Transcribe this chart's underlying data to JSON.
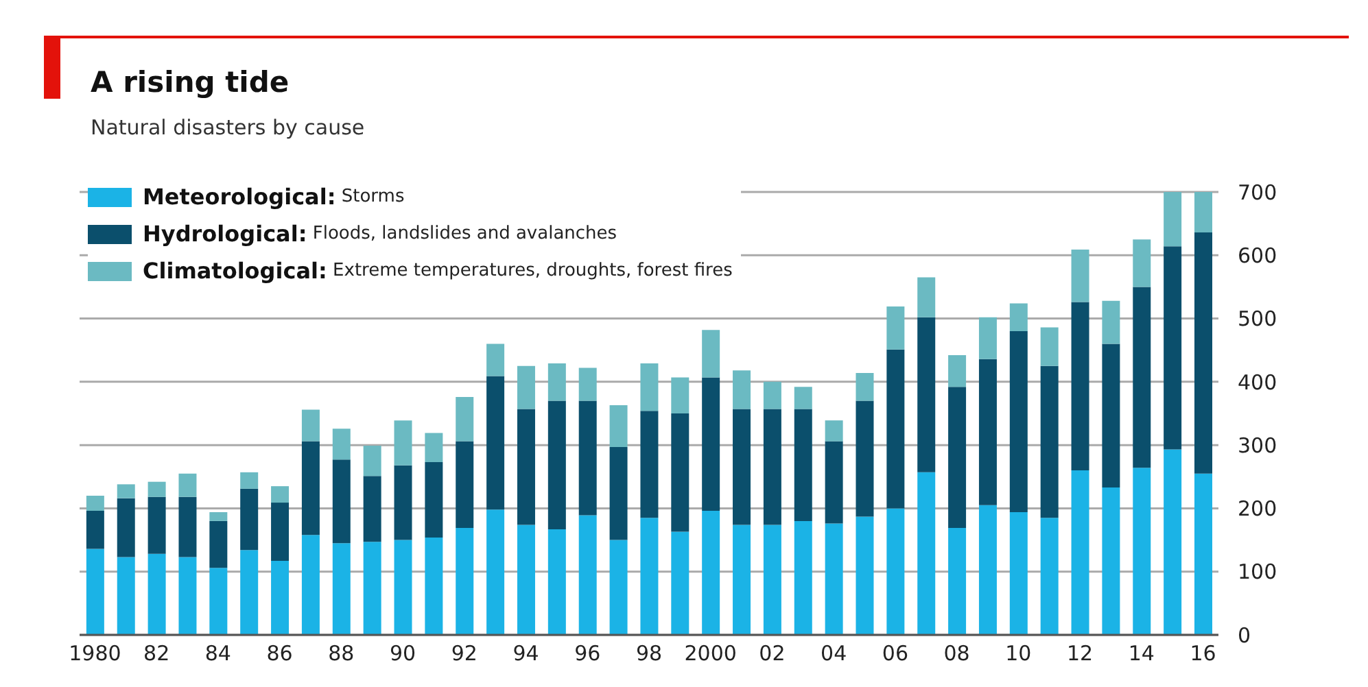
{
  "chart_data": {
    "type": "bar",
    "title": "A rising tide",
    "subtitle": "Natural disasters by cause",
    "categories": [
      "1980",
      null,
      "82",
      null,
      "84",
      null,
      "86",
      null,
      "88",
      null,
      "90",
      null,
      "92",
      null,
      "94",
      null,
      "96",
      null,
      "98",
      null,
      "2000",
      null,
      "02",
      null,
      "04",
      null,
      "06",
      null,
      "08",
      null,
      "10",
      null,
      "12",
      null,
      "14",
      null,
      "16"
    ],
    "stacked": true,
    "series": [
      {
        "name": "Meteorological: Storms",
        "color": "#1bb3e6",
        "values": [
          136,
          123,
          128,
          123,
          106,
          134,
          117,
          158,
          145,
          147,
          150,
          154,
          169,
          198,
          174,
          167,
          189,
          150,
          185,
          163,
          196,
          174,
          174,
          180,
          176,
          187,
          200,
          257,
          169,
          205,
          194,
          185,
          260,
          233,
          264,
          293,
          255
        ]
      },
      {
        "name": "Hydrological: Floods, landslides and avalanches",
        "color": "#0b4f6c",
        "values": [
          60,
          93,
          90,
          95,
          74,
          97,
          92,
          148,
          132,
          104,
          118,
          119,
          137,
          211,
          183,
          203,
          181,
          147,
          169,
          187,
          211,
          183,
          183,
          177,
          130,
          183,
          251,
          245,
          223,
          231,
          286,
          240,
          266,
          227,
          286,
          321,
          381
        ]
      },
      {
        "name": "Climatological: Extreme temperatures, droughts, forest fires",
        "color": "#6bbac2",
        "values": [
          24,
          22,
          24,
          37,
          14,
          26,
          26,
          50,
          49,
          48,
          71,
          46,
          70,
          51,
          68,
          59,
          52,
          66,
          75,
          57,
          75,
          61,
          43,
          35,
          33,
          44,
          68,
          63,
          50,
          66,
          44,
          61,
          83,
          68,
          75,
          86,
          64
        ]
      }
    ],
    "ylim": [
      0,
      700
    ],
    "yticks": [
      0,
      100,
      200,
      300,
      400,
      500,
      600,
      700
    ],
    "grid": "y",
    "legend": "top left"
  }
}
